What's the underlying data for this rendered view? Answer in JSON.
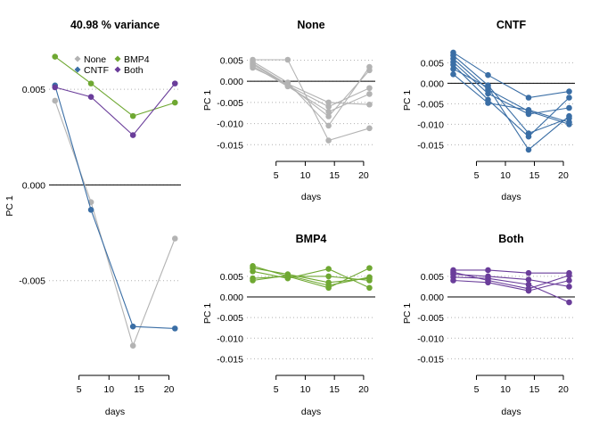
{
  "chart_data": [
    {
      "type": "line",
      "title": "40.98 % variance",
      "xlabel": "days",
      "ylabel": "PC 1",
      "x": [
        1,
        7,
        14,
        21
      ],
      "xticks": [
        "5",
        "10",
        "15",
        "20"
      ],
      "xtick_values": [
        5,
        10,
        15,
        20
      ],
      "yticks": [
        "0.005",
        "0.000",
        "-0.005"
      ],
      "ytick_values": [
        0.005,
        0.0,
        -0.005
      ],
      "ylim": [
        -0.0093,
        0.0071
      ],
      "xlim": [
        0,
        22
      ],
      "legend": {
        "placement": "top",
        "entries": [
          "None",
          "BMP4",
          "CNTF",
          "Both"
        ]
      },
      "grid": "horizontal dotted",
      "series": [
        {
          "name": "None",
          "color": "#b3b3b3",
          "values": [
            0.0044,
            -0.0009,
            -0.0084,
            -0.0028
          ]
        },
        {
          "name": "BMP4",
          "color": "#6fa832",
          "values": [
            0.0067,
            0.0053,
            0.0036,
            0.0043
          ]
        },
        {
          "name": "CNTF",
          "color": "#3a6ea5",
          "values": [
            0.0052,
            -0.0013,
            -0.0074,
            -0.0075
          ]
        },
        {
          "name": "Both",
          "color": "#6a3d9a",
          "values": [
            0.0051,
            0.0046,
            0.0026,
            0.0053
          ]
        }
      ]
    },
    {
      "type": "line",
      "title": "None",
      "xlabel": "days",
      "ylabel": "PC 1",
      "x": [
        1,
        7,
        14,
        21
      ],
      "xticks": [
        "5",
        "10",
        "15",
        "20"
      ],
      "xtick_values": [
        5,
        10,
        15,
        20
      ],
      "yticks": [
        "0.005",
        "0.000",
        "-0.005",
        "-0.010",
        "-0.015"
      ],
      "ytick_values": [
        0.005,
        0.0,
        -0.005,
        -0.01,
        -0.015
      ],
      "ylim": [
        -0.016,
        0.007
      ],
      "xlim": [
        0,
        22
      ],
      "color": "#b3b3b3",
      "series": [
        {
          "values": [
            0.0051,
            0.0051,
            -0.014,
            -0.0111
          ]
        },
        {
          "values": [
            0.0047,
            -0.0003,
            -0.0105,
            0.0034
          ]
        },
        {
          "values": [
            0.0043,
            -0.0008,
            -0.0083,
            0.0026
          ]
        },
        {
          "values": [
            0.004,
            -0.001,
            -0.006,
            -0.0016
          ]
        },
        {
          "values": [
            0.0036,
            -0.0012,
            -0.0072,
            -0.003
          ]
        },
        {
          "values": [
            0.0032,
            -0.0006,
            -0.005,
            -0.0055
          ]
        }
      ]
    },
    {
      "type": "line",
      "title": "CNTF",
      "xlabel": "days",
      "ylabel": "PC 1",
      "x": [
        1,
        7,
        14,
        21
      ],
      "xticks": [
        "5",
        "10",
        "15",
        "20"
      ],
      "xtick_values": [
        5,
        10,
        15,
        20
      ],
      "yticks": [
        "0.005",
        "0.000",
        "-0.005",
        "-0.010",
        "-0.015"
      ],
      "ytick_values": [
        0.005,
        0.0,
        -0.005,
        -0.01,
        -0.015
      ],
      "ylim": [
        -0.016,
        0.0077
      ],
      "xlim": [
        0,
        22
      ],
      "color": "#3a6ea5",
      "series": [
        {
          "values": [
            0.0075,
            0.002,
            -0.0035,
            -0.002
          ]
        },
        {
          "values": [
            0.0068,
            -0.0005,
            -0.0122,
            -0.0085
          ]
        },
        {
          "values": [
            0.006,
            -0.0015,
            -0.0068,
            -0.01
          ]
        },
        {
          "values": [
            0.0052,
            -0.0025,
            -0.0075,
            -0.006
          ]
        },
        {
          "values": [
            0.0045,
            -0.004,
            -0.013,
            -0.0035
          ]
        },
        {
          "values": [
            0.0035,
            -0.001,
            -0.0162,
            -0.008
          ]
        },
        {
          "values": [
            0.0022,
            -0.0048,
            -0.0065,
            -0.0095
          ]
        }
      ]
    },
    {
      "type": "line",
      "title": "BMP4",
      "xlabel": "days",
      "ylabel": "PC 1",
      "x": [
        1,
        7,
        14,
        21
      ],
      "xticks": [
        "5",
        "10",
        "15",
        "20"
      ],
      "xtick_values": [
        5,
        10,
        15,
        20
      ],
      "yticks": [
        "0.005",
        "0.000",
        "-0.005",
        "-0.010",
        "-0.015"
      ],
      "ytick_values": [
        0.005,
        0.0,
        -0.005,
        -0.01,
        -0.015
      ],
      "ylim": [
        -0.016,
        0.008
      ],
      "xlim": [
        0,
        22
      ],
      "color": "#6fa832",
      "series": [
        {
          "values": [
            0.0075,
            0.005,
            0.0022,
            0.007
          ]
        },
        {
          "values": [
            0.007,
            0.0055,
            0.0035,
            0.0045
          ]
        },
        {
          "values": [
            0.0062,
            0.0045,
            0.0068,
            0.0022
          ]
        },
        {
          "values": [
            0.0045,
            0.005,
            0.005,
            0.004
          ]
        },
        {
          "values": [
            0.004,
            0.0052,
            0.0028,
            0.0048
          ]
        }
      ]
    },
    {
      "type": "line",
      "title": "Both",
      "xlabel": "days",
      "ylabel": "PC 1",
      "x": [
        1,
        7,
        14,
        21
      ],
      "xticks": [
        "5",
        "10",
        "15",
        "20"
      ],
      "xtick_values": [
        5,
        10,
        15,
        20
      ],
      "yticks": [
        "0.005",
        "0.000",
        "-0.005",
        "-0.010",
        "-0.015"
      ],
      "ytick_values": [
        0.005,
        0.0,
        -0.005,
        -0.01,
        -0.015
      ],
      "ylim": [
        -0.016,
        0.008
      ],
      "xlim": [
        0,
        22
      ],
      "color": "#6a3d9a",
      "series": [
        {
          "values": [
            0.0065,
            0.0065,
            0.0058,
            0.0058
          ]
        },
        {
          "values": [
            0.006,
            0.004,
            0.002,
            0.0052
          ]
        },
        {
          "values": [
            0.0055,
            0.005,
            0.0042,
            0.0025
          ]
        },
        {
          "values": [
            0.0048,
            0.0045,
            0.003,
            -0.0013
          ]
        },
        {
          "values": [
            0.004,
            0.0035,
            0.0015,
            0.004
          ]
        }
      ]
    }
  ]
}
